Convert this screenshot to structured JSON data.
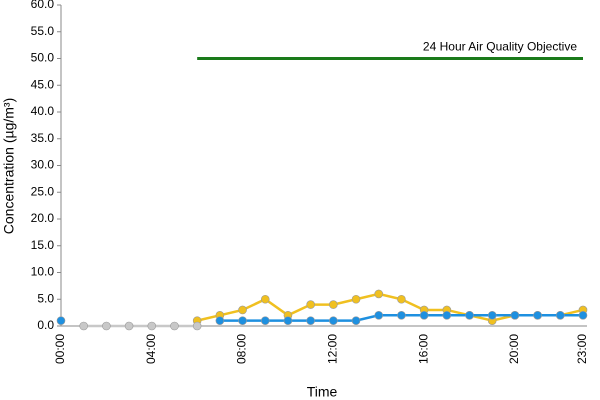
{
  "chart_data": {
    "type": "line",
    "x_label": "Time",
    "y_label": "Concentration (µg/m³)",
    "categories": [
      "00:00",
      null,
      null,
      null,
      "04:00",
      null,
      null,
      null,
      "08:00",
      null,
      null,
      null,
      "12:00",
      null,
      null,
      null,
      "16:00",
      null,
      null,
      null,
      "20:00",
      null,
      null,
      "23:00"
    ],
    "ylim": [
      0,
      60
    ],
    "yticks": [
      {
        "value": 0,
        "label": "0.0"
      },
      {
        "value": 5,
        "label": "5.0"
      },
      {
        "value": 10,
        "label": "10.0"
      },
      {
        "value": 15,
        "label": "15.0"
      },
      {
        "value": 20,
        "label": "20.0"
      },
      {
        "value": 25,
        "label": "25.0"
      },
      {
        "value": 30,
        "label": "30.0"
      },
      {
        "value": 35,
        "label": "35.0"
      },
      {
        "value": 40,
        "label": "40.0"
      },
      {
        "value": 45,
        "label": "45.0"
      },
      {
        "value": 50,
        "label": "50.0"
      },
      {
        "value": 55,
        "label": "55.0"
      },
      {
        "value": 60,
        "label": "60.0"
      }
    ],
    "grid": false,
    "series": [
      {
        "name": "24 Hour Air Quality Objective",
        "color": "#1a7a1a",
        "markers": false,
        "values": [
          null,
          null,
          null,
          null,
          null,
          null,
          50,
          50,
          50,
          50,
          50,
          50,
          50,
          50,
          50,
          50,
          50,
          50,
          50,
          50,
          50,
          50,
          50,
          50
        ]
      },
      {
        "color": "#f0c020",
        "markers": true,
        "values": [
          null,
          null,
          null,
          null,
          null,
          null,
          1,
          2,
          3,
          5,
          2,
          4,
          4,
          5,
          6,
          5,
          3,
          3,
          2,
          1,
          2,
          2,
          2,
          3
        ]
      },
      {
        "color": "#c8c8c8",
        "markers": true,
        "values": [
          null,
          0,
          0,
          0,
          0,
          0,
          0,
          null,
          null,
          null,
          null,
          null,
          null,
          null,
          null,
          null,
          null,
          null,
          null,
          null,
          null,
          null,
          null,
          null
        ]
      },
      {
        "color": "#1e90e0",
        "markers": true,
        "values": [
          1,
          null,
          null,
          null,
          null,
          null,
          null,
          1,
          1,
          1,
          1,
          1,
          1,
          1,
          2,
          2,
          2,
          2,
          2,
          2,
          2,
          2,
          2,
          2
        ]
      }
    ]
  }
}
